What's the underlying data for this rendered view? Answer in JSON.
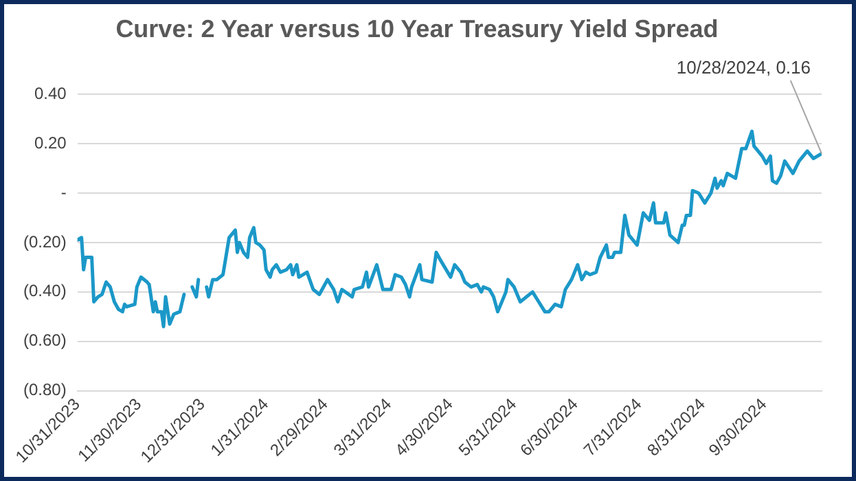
{
  "chart_data": {
    "type": "line",
    "title": "Curve: 2 Year versus 10 Year Treasury Yield Spread",
    "color": "#1b98c8",
    "grid": "y",
    "legend": false,
    "marker": "none",
    "line_style": "solid",
    "x": [
      "2023-10-31",
      "2023-11-02",
      "2023-11-03",
      "2023-11-04",
      "2023-11-07",
      "2023-11-08",
      "2023-11-10",
      "2023-11-12",
      "2023-11-14",
      "2023-11-16",
      "2023-11-18",
      "2023-11-20",
      "2023-11-22",
      "2023-11-23",
      "2023-11-24",
      "2023-11-28",
      "2023-11-29",
      "2023-12-01",
      "2023-12-04",
      "2023-12-05",
      "2023-12-07",
      "2023-12-08",
      "2023-12-09",
      "2023-12-11",
      "2023-12-12",
      "2023-12-13",
      "2023-12-15",
      "2023-12-17",
      "2023-12-20",
      "2023-12-22",
      "2023-12-24",
      "2023-12-26",
      "2023-12-28",
      "2023-12-29",
      "2023-12-31",
      "2024-01-02",
      "2024-01-03",
      "2024-01-05",
      "2024-01-07",
      "2024-01-10",
      "2024-01-13",
      "2024-01-14",
      "2024-01-16",
      "2024-01-17",
      "2024-01-18",
      "2024-01-20",
      "2024-01-22",
      "2024-01-23",
      "2024-01-25",
      "2024-01-26",
      "2024-01-28",
      "2024-01-30",
      "2024-01-31",
      "2024-02-02",
      "2024-02-03",
      "2024-02-05",
      "2024-02-07",
      "2024-02-10",
      "2024-02-12",
      "2024-02-13",
      "2024-02-15",
      "2024-02-16",
      "2024-02-20",
      "2024-02-23",
      "2024-02-26",
      "2024-02-28",
      "2024-03-01",
      "2024-03-04",
      "2024-03-06",
      "2024-03-08",
      "2024-03-13",
      "2024-03-14",
      "2024-03-18",
      "2024-03-20",
      "2024-03-21",
      "2024-03-25",
      "2024-03-28",
      "2024-04-01",
      "2024-04-03",
      "2024-04-06",
      "2024-04-08",
      "2024-04-10",
      "2024-04-11",
      "2024-04-15",
      "2024-04-16",
      "2024-04-21",
      "2024-04-23",
      "2024-04-25",
      "2024-04-30",
      "2024-05-02",
      "2024-05-05",
      "2024-05-07",
      "2024-05-10",
      "2024-05-13",
      "2024-05-15",
      "2024-05-16",
      "2024-05-19",
      "2024-05-21",
      "2024-05-23",
      "2024-05-27",
      "2024-05-28",
      "2024-05-31",
      "2024-06-03",
      "2024-06-06",
      "2024-06-09",
      "2024-06-12",
      "2024-06-15",
      "2024-06-17",
      "2024-06-20",
      "2024-06-23",
      "2024-06-25",
      "2024-06-28",
      "2024-07-01",
      "2024-07-03",
      "2024-07-05",
      "2024-07-07",
      "2024-07-10",
      "2024-07-12",
      "2024-07-15",
      "2024-07-16",
      "2024-07-18",
      "2024-07-19",
      "2024-07-22",
      "2024-07-24",
      "2024-07-26",
      "2024-07-30",
      "2024-08-02",
      "2024-08-05",
      "2024-08-07",
      "2024-08-08",
      "2024-08-12",
      "2024-08-13",
      "2024-08-15",
      "2024-08-19",
      "2024-08-21",
      "2024-08-22",
      "2024-08-23",
      "2024-08-25",
      "2024-08-26",
      "2024-08-29",
      "2024-09-01",
      "2024-09-04",
      "2024-09-06",
      "2024-09-07",
      "2024-09-09",
      "2024-09-10",
      "2024-09-12",
      "2024-09-16",
      "2024-09-19",
      "2024-09-21",
      "2024-09-24",
      "2024-09-25",
      "2024-09-29",
      "2024-10-01",
      "2024-10-03",
      "2024-10-04",
      "2024-10-06",
      "2024-10-08",
      "2024-10-10",
      "2024-10-14",
      "2024-10-17",
      "2024-10-21",
      "2024-10-24",
      "2024-10-28"
    ],
    "values": [
      -0.19,
      -0.18,
      -0.31,
      -0.26,
      -0.26,
      -0.44,
      -0.42,
      -0.41,
      -0.36,
      -0.38,
      -0.44,
      -0.47,
      -0.48,
      -0.45,
      -0.46,
      -0.45,
      -0.38,
      -0.34,
      -0.36,
      -0.37,
      -0.48,
      -0.44,
      -0.48,
      -0.48,
      -0.54,
      -0.42,
      -0.53,
      -0.49,
      -0.48,
      -0.41,
      null,
      -0.38,
      -0.42,
      -0.35,
      null,
      -0.38,
      -0.42,
      -0.35,
      -0.35,
      -0.33,
      -0.18,
      -0.17,
      -0.15,
      -0.24,
      -0.2,
      -0.24,
      -0.26,
      -0.18,
      -0.14,
      -0.2,
      -0.21,
      -0.23,
      -0.31,
      -0.34,
      -0.31,
      -0.29,
      -0.32,
      -0.31,
      -0.29,
      -0.33,
      -0.29,
      -0.34,
      -0.32,
      -0.39,
      -0.41,
      -0.38,
      -0.35,
      -0.39,
      -0.44,
      -0.39,
      -0.42,
      -0.39,
      -0.38,
      -0.32,
      -0.38,
      -0.29,
      -0.39,
      -0.39,
      -0.33,
      -0.34,
      -0.37,
      -0.42,
      -0.38,
      -0.29,
      -0.35,
      -0.36,
      -0.24,
      -0.27,
      -0.34,
      -0.29,
      -0.32,
      -0.36,
      -0.38,
      -0.37,
      -0.4,
      -0.38,
      -0.39,
      -0.42,
      -0.48,
      -0.4,
      -0.35,
      -0.38,
      -0.44,
      -0.42,
      -0.4,
      -0.44,
      -0.48,
      -0.48,
      -0.45,
      -0.46,
      -0.39,
      -0.35,
      -0.29,
      -0.35,
      -0.32,
      -0.33,
      -0.32,
      -0.26,
      -0.21,
      -0.26,
      -0.26,
      -0.24,
      -0.24,
      -0.09,
      -0.17,
      -0.21,
      -0.08,
      -0.11,
      -0.04,
      -0.12,
      -0.12,
      -0.08,
      -0.17,
      -0.2,
      -0.13,
      -0.13,
      -0.09,
      -0.09,
      0.01,
      0.0,
      -0.04,
      0.0,
      0.06,
      0.02,
      0.05,
      0.03,
      0.08,
      0.06,
      0.18,
      0.18,
      0.25,
      0.19,
      0.15,
      0.12,
      0.15,
      0.05,
      0.04,
      0.07,
      0.13,
      0.08,
      0.13,
      0.17,
      0.14,
      0.16
    ],
    "xlim": [
      "2023-10-31",
      "2024-10-28"
    ],
    "xticks": [
      {
        "value": "2023-10-31",
        "label": "10/31/2023"
      },
      {
        "value": "2023-11-30",
        "label": "11/30/2023"
      },
      {
        "value": "2023-12-31",
        "label": "12/31/2023"
      },
      {
        "value": "2024-01-31",
        "label": "1/31/2024"
      },
      {
        "value": "2024-02-29",
        "label": "2/29/2024"
      },
      {
        "value": "2024-03-31",
        "label": "3/31/2024"
      },
      {
        "value": "2024-04-30",
        "label": "4/30/2024"
      },
      {
        "value": "2024-05-31",
        "label": "5/31/2024"
      },
      {
        "value": "2024-06-30",
        "label": "6/30/2024"
      },
      {
        "value": "2024-07-31",
        "label": "7/31/2024"
      },
      {
        "value": "2024-08-31",
        "label": "8/31/2024"
      },
      {
        "value": "2024-09-30",
        "label": "9/30/2024"
      }
    ],
    "ylim": [
      -0.8,
      0.4
    ],
    "yticks": [
      {
        "value": -0.8,
        "label": "(0.80)"
      },
      {
        "value": -0.6,
        "label": "(0.60)"
      },
      {
        "value": -0.4,
        "label": "(0.40)"
      },
      {
        "value": -0.2,
        "label": "(0.20)"
      },
      {
        "value": 0,
        "label": "-"
      },
      {
        "value": 0.2,
        "label": "0.20"
      },
      {
        "value": 0.4,
        "label": "0.40"
      }
    ],
    "annotations": [
      {
        "text": "10/28/2024, 0.16",
        "x": "2024-10-28",
        "y": 0.16
      }
    ]
  }
}
